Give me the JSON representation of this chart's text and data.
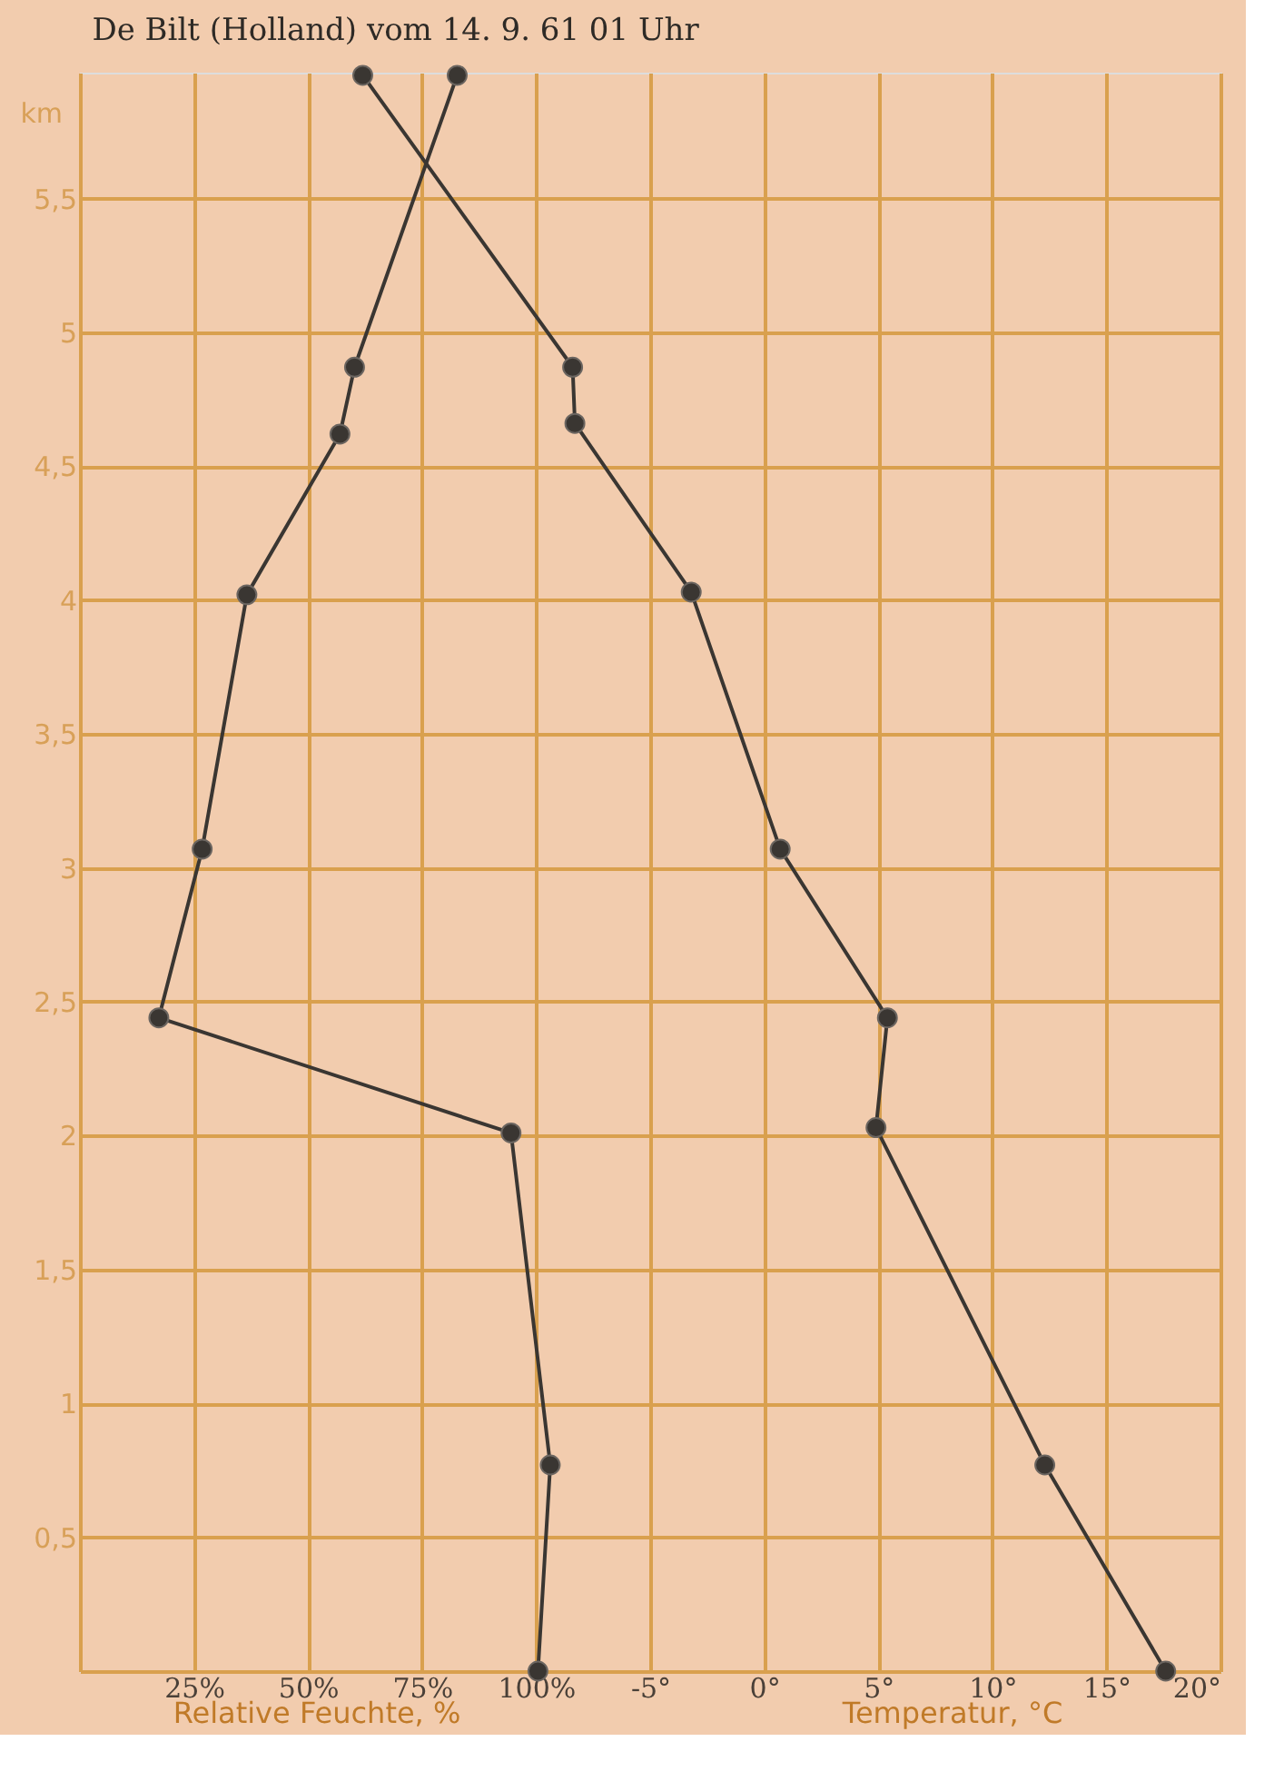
{
  "chart_data": {
    "type": "line",
    "title": "De Bilt (Holland) vom 14. 9. 61 01 Uhr",
    "ylabel": "km",
    "xlabel": "Relative Feuchte, %",
    "x2label": "Temperatur, °C",
    "xlim": [
      0,
      250
    ],
    "xticks": [
      {
        "value": 25,
        "label": "25%"
      },
      {
        "value": 50,
        "label": "50%"
      },
      {
        "value": 75,
        "label": "75%"
      },
      {
        "value": 100,
        "label": "100%"
      }
    ],
    "x2lim": [
      -30,
      20
    ],
    "x2ticks": [
      {
        "value": -5,
        "label": "-5°"
      },
      {
        "value": 0,
        "label": "0°"
      },
      {
        "value": 5,
        "label": "5°"
      },
      {
        "value": 10,
        "label": "10°"
      },
      {
        "value": 15,
        "label": "15°"
      },
      {
        "value": 20,
        "label": "20°"
      }
    ],
    "ylim": [
      0,
      5.97
    ],
    "yticks": [
      {
        "value": 0.5,
        "label": "0,5"
      },
      {
        "value": 1,
        "label": "1"
      },
      {
        "value": 1.5,
        "label": "1,5"
      },
      {
        "value": 2,
        "label": "2"
      },
      {
        "value": 2.5,
        "label": "2,5"
      },
      {
        "value": 3,
        "label": "3"
      },
      {
        "value": 3.5,
        "label": "3,5"
      },
      {
        "value": 4,
        "label": "4"
      },
      {
        "value": 4.5,
        "label": "4,5"
      },
      {
        "value": 5,
        "label": "5"
      },
      {
        "value": 5.5,
        "label": "5,5"
      }
    ],
    "grid": true,
    "marker": "circle",
    "line_style": "solid",
    "series": [
      {
        "color": "#3a3632",
        "x": [
          82.7,
          60.2,
          57.0,
          36.6,
          26.8,
          17.3,
          94.5,
          103.1,
          100.4
        ],
        "values": [
          5.96,
          4.87,
          4.62,
          4.02,
          3.07,
          2.44,
          2.01,
          0.77,
          0
        ]
      },
      {
        "color": "#3a3632",
        "axis": "x2",
        "x": [
          -17.6,
          -8.4,
          -8.3,
          -3.2,
          0.7,
          5.4,
          4.9,
          12.3,
          17.6
        ],
        "values": [
          5.96,
          4.87,
          4.66,
          4.03,
          3.07,
          2.44,
          2.03,
          0.77,
          0
        ]
      }
    ]
  }
}
